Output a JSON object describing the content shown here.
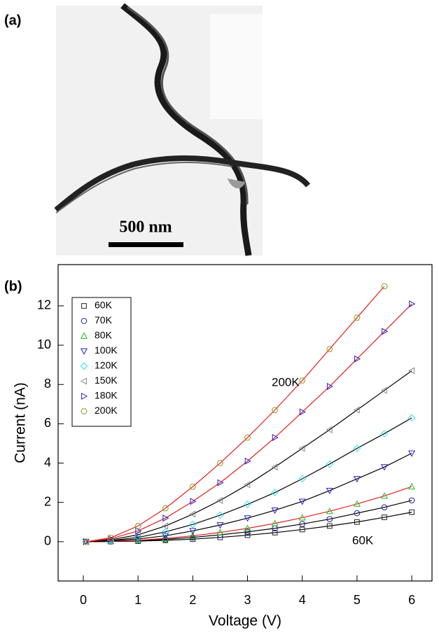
{
  "panel_a": {
    "label": "(a)",
    "scale_bar": "500 nm"
  },
  "panel_b": {
    "label": "(b)"
  },
  "chart_data": {
    "type": "scatter",
    "x_label": "Voltage (V)",
    "y_label": "Current (nA)",
    "annotations": [
      "200K",
      "60K"
    ],
    "x": [
      0.05,
      0.5,
      1,
      1.5,
      2,
      2.5,
      3,
      3.5,
      4,
      4.5,
      5,
      5.5,
      6
    ],
    "series": [
      {
        "name": "60K",
        "color": "#222222",
        "marker": "square",
        "fit_color": "#000000",
        "values": [
          0,
          0.01,
          0.03,
          0.07,
          0.13,
          0.22,
          0.33,
          0.46,
          0.62,
          0.8,
          1.0,
          1.24,
          1.5
        ]
      },
      {
        "name": "70K",
        "color": "#1a1aa0",
        "marker": "circle",
        "fit_color": "#000000",
        "values": [
          0,
          0.01,
          0.05,
          0.12,
          0.22,
          0.35,
          0.5,
          0.68,
          0.9,
          1.15,
          1.45,
          1.75,
          2.1
        ]
      },
      {
        "name": "80K",
        "color": "#22bb22",
        "marker": "triangle-up",
        "fit_color": "#e02020",
        "values": [
          0,
          0.02,
          0.07,
          0.17,
          0.3,
          0.47,
          0.68,
          0.93,
          1.22,
          1.55,
          1.92,
          2.33,
          2.8
        ]
      },
      {
        "name": "100K",
        "color": "#2020cc",
        "marker": "triangle-down",
        "fit_color": "#000000",
        "values": [
          0,
          0.04,
          0.14,
          0.3,
          0.55,
          0.85,
          1.2,
          1.6,
          2.05,
          2.6,
          3.2,
          3.8,
          4.5
        ]
      },
      {
        "name": "120K",
        "color": "#33ddee",
        "marker": "diamond",
        "fit_color": "#000000",
        "values": [
          0,
          0.06,
          0.22,
          0.5,
          0.88,
          1.35,
          1.9,
          2.5,
          3.2,
          3.95,
          4.75,
          5.5,
          6.3
        ]
      },
      {
        "name": "150K",
        "color": "#888888",
        "marker": "triangle-left",
        "fit_color": "#000000",
        "values": [
          0,
          0.1,
          0.35,
          0.8,
          1.4,
          2.1,
          2.9,
          3.8,
          4.75,
          5.7,
          6.7,
          7.7,
          8.7
        ]
      },
      {
        "name": "180K",
        "color": "#2222cc",
        "marker": "triangle-right",
        "fit_color": "#e02020",
        "values": [
          0,
          0.15,
          0.55,
          1.2,
          2.05,
          3.0,
          4.1,
          5.3,
          6.6,
          7.9,
          9.3,
          10.7,
          12.1
        ]
      },
      {
        "name": "200K",
        "color": "#999922",
        "marker": "hexagon",
        "fit_color": "#e02020",
        "values": [
          0,
          0.2,
          0.8,
          1.7,
          2.8,
          4.0,
          5.3,
          6.7,
          8.2,
          9.8,
          11.4,
          13.0,
          null
        ]
      }
    ],
    "xlim": [
      -0.46,
      6.37
    ],
    "ylim": [
      -2,
      14.1
    ],
    "xticks": [
      0,
      1,
      2,
      3,
      4,
      5,
      6
    ],
    "yticks": [
      0,
      2,
      4,
      6,
      8,
      10,
      12
    ],
    "legend": "upper left"
  }
}
